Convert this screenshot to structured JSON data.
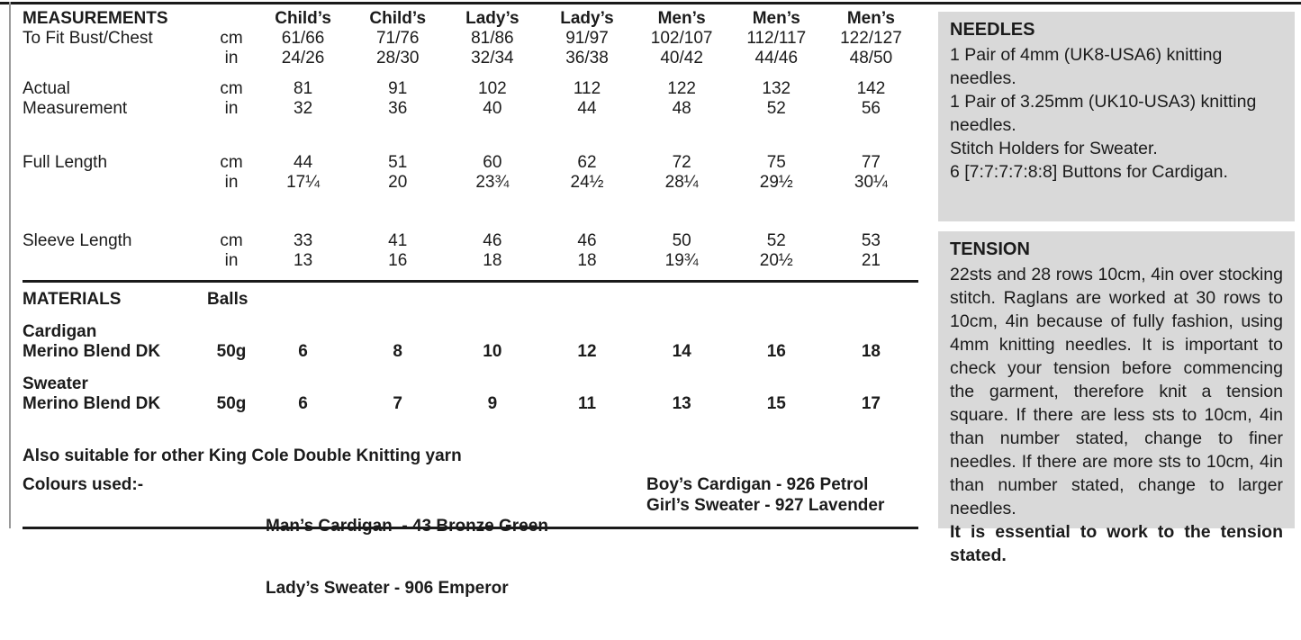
{
  "page": {
    "panel_bg": "#d9d9d9",
    "rule_color": "#1a1a1a",
    "text_color": "#1b1b1b"
  },
  "measurements": {
    "title": "MEASUREMENTS",
    "size_headers": [
      "Child’s",
      "Child’s",
      "Lady’s",
      "Lady’s",
      "Men’s",
      "Men’s",
      "Men’s"
    ],
    "units": [
      "cm",
      "in"
    ],
    "groups": [
      {
        "label_line1": "To Fit Bust/Chest",
        "label_line2": "",
        "cm": [
          "61/66",
          "71/76",
          "81/86",
          "91/97",
          "102/107",
          "112/117",
          "122/127"
        ],
        "in": [
          "24/26",
          "28/30",
          "32/34",
          "36/38",
          "40/42",
          "44/46",
          "48/50"
        ]
      },
      {
        "label_line1": "Actual",
        "label_line2": "Measurement",
        "cm": [
          "81",
          "91",
          "102",
          "112",
          "122",
          "132",
          "142"
        ],
        "in": [
          "32",
          "36",
          "40",
          "44",
          "48",
          "52",
          "56"
        ]
      },
      {
        "label_line1": "Full Length",
        "label_line2": "",
        "cm": [
          "44",
          "51",
          "60",
          "62",
          "72",
          "75",
          "77"
        ],
        "in": [
          "17¼",
          "20",
          "23¾",
          "24½",
          "28¼",
          "29½",
          "30¼"
        ]
      },
      {
        "label_line1": "Sleeve Length",
        "label_line2": "",
        "cm": [
          "33",
          "41",
          "46",
          "46",
          "50",
          "52",
          "53"
        ],
        "in": [
          "13",
          "16",
          "18",
          "18",
          "19¾",
          "20½",
          "21"
        ]
      }
    ]
  },
  "materials": {
    "title": "MATERIALS",
    "balls_header": "Balls",
    "items": [
      {
        "name_line1": "Cardigan",
        "name_line2": "Merino Blend DK",
        "weight": "50g",
        "balls": [
          "6",
          "8",
          "10",
          "12",
          "14",
          "16",
          "18"
        ]
      },
      {
        "name_line1": "Sweater",
        "name_line2": "Merino Blend DK",
        "weight": "50g",
        "balls": [
          "6",
          "7",
          "9",
          "11",
          "13",
          "15",
          "17"
        ]
      }
    ],
    "note": "Also suitable for other King Cole Double Knitting yarn",
    "colours_label": "Colours used:-",
    "colours_col1": [
      "Man’s Cardigan  - 43 Bronze Green",
      "Lady’s Sweater - 906 Emperor"
    ],
    "colours_col2": [
      "Boy’s Cardigan - 926 Petrol",
      "Girl’s Sweater - 927 Lavender"
    ]
  },
  "needles": {
    "title": "NEEDLES",
    "lines": [
      "1 Pair of 4mm (UK8-USA6) knitting needles.",
      "1 Pair of 3.25mm (UK10-USA3) knitting needles.",
      "Stitch Holders for Sweater.",
      "6 [7:7:7:7:8:8] Buttons for Cardigan."
    ]
  },
  "tension": {
    "title": "TENSION",
    "body": "22sts and 28 rows 10cm, 4in over stocking stitch. Raglans are worked at 30 rows to 10cm, 4in because of fully fashion, using 4mm knitting needles. It is important to check your tension before commencing the garment, therefore knit a tension square. If there are less sts to 10cm, 4in than number stated, change to finer needles. If there are more sts to 10cm, 4in than number stated, change to larger needles.",
    "emphasis": "It is essential to work to the tension stated."
  }
}
